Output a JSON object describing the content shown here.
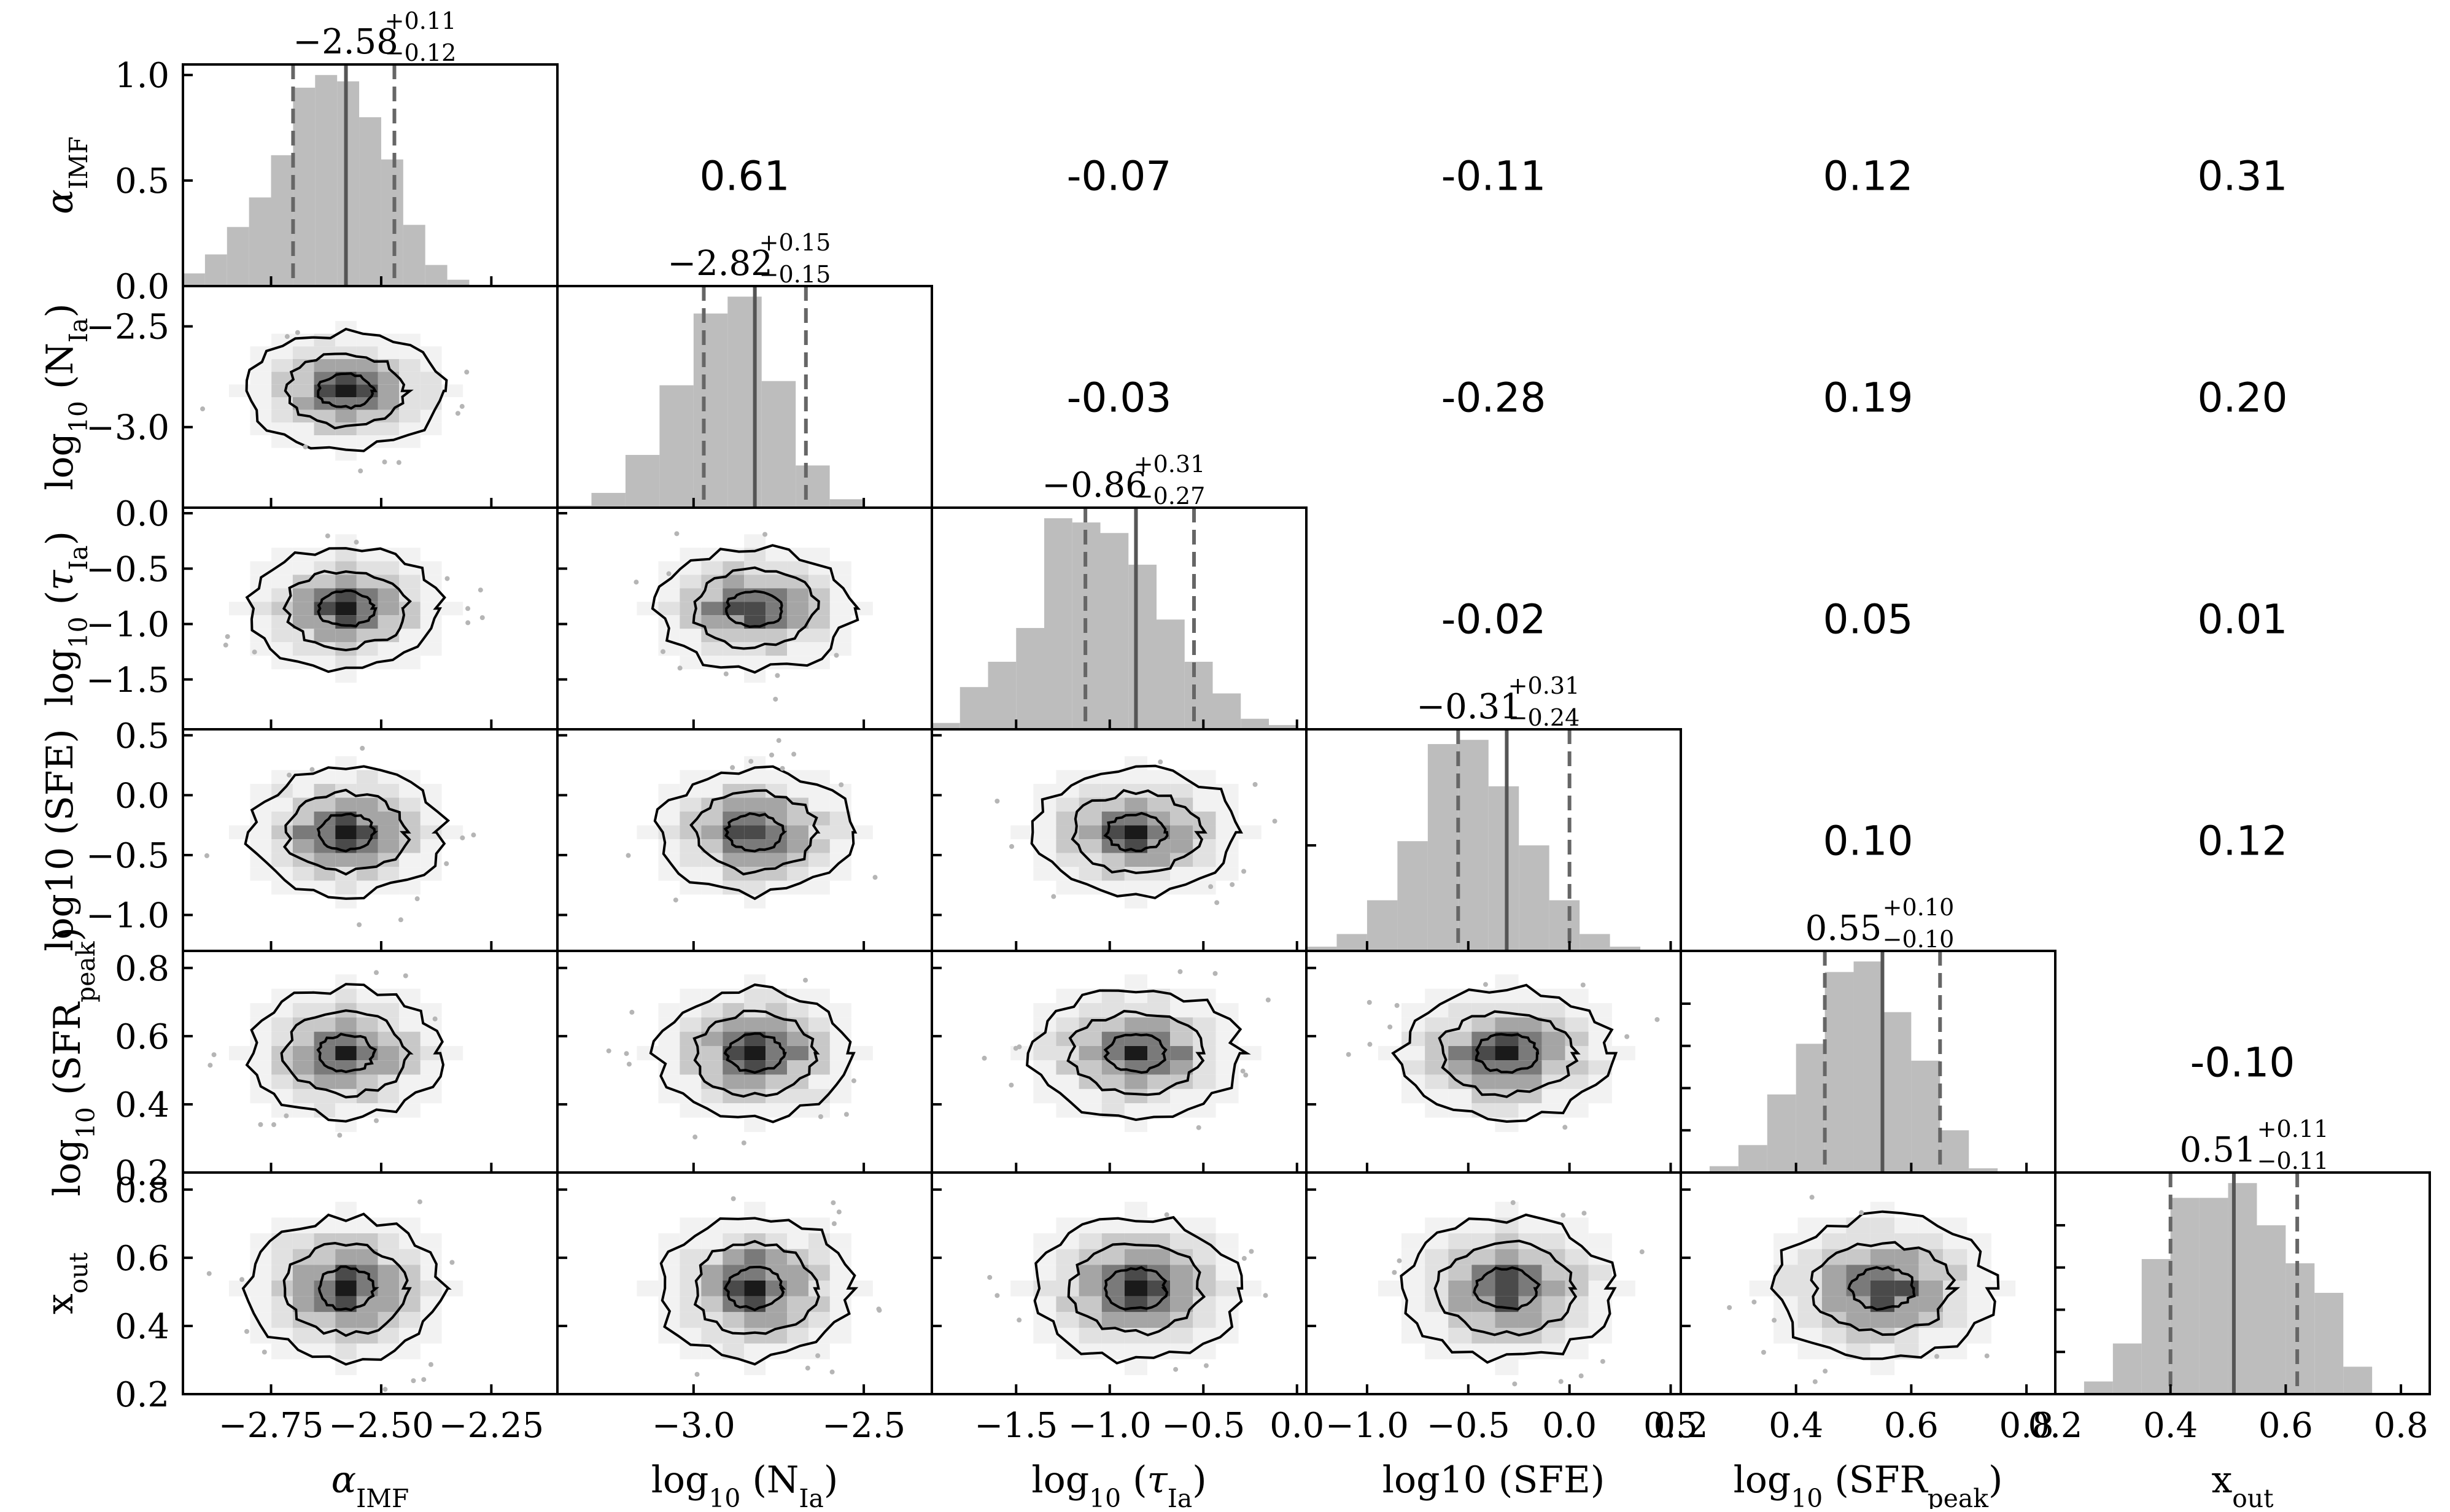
{
  "chart_data": {
    "type": "corner",
    "parameters": [
      {
        "key": "alpha",
        "axis_label": "α_IMF",
        "range": [
          -2.95,
          -2.1
        ],
        "ticks": [
          -2.75,
          -2.5,
          -2.25
        ],
        "tick_labels": [
          "−2.75",
          "−2.50",
          "−2.25"
        ],
        "median": -2.58,
        "plus": 0.11,
        "minus": 0.12,
        "title_main": "−2.58",
        "title_sup": "+0.11",
        "title_sub": "−0.12",
        "hist_edges": [
          -2.95,
          -2.9,
          -2.85,
          -2.8,
          -2.75,
          -2.7,
          -2.65,
          -2.6,
          -2.55,
          -2.5,
          -2.45,
          -2.4,
          -2.35,
          -2.3,
          -2.25,
          -2.2,
          -2.15
        ],
        "hist_values": [
          0.06,
          0.15,
          0.28,
          0.42,
          0.62,
          0.94,
          1.0,
          0.97,
          0.8,
          0.6,
          0.29,
          0.1,
          0.03,
          0.0,
          0.0,
          0.0
        ]
      },
      {
        "key": "nia",
        "axis_label": "log10 (N_Ia)",
        "range": [
          -3.4,
          -2.3
        ],
        "ticks": [
          -3.0,
          -2.5
        ],
        "tick_labels": [
          "−3.0",
          "−2.5"
        ],
        "median": -2.82,
        "plus": 0.15,
        "minus": 0.15,
        "title_main": "−2.82",
        "title_sup": "+0.15",
        "title_sub": "−0.15",
        "hist_edges": [
          -3.4,
          -3.3,
          -3.2,
          -3.1,
          -3.0,
          -2.9,
          -2.8,
          -2.7,
          -2.6,
          -2.5,
          -2.4
        ],
        "hist_values": [
          0.01,
          0.07,
          0.25,
          0.58,
          0.92,
          1.0,
          0.6,
          0.2,
          0.04,
          0.0
        ]
      },
      {
        "key": "tau",
        "axis_label": "log10 (τ_Ia)",
        "range": [
          -1.95,
          0.05
        ],
        "ticks": [
          -1.5,
          -1.0,
          -0.5,
          0.0
        ],
        "tick_labels": [
          "−1.5",
          "−1.0",
          "−0.5",
          "0.0"
        ],
        "median": -0.86,
        "plus": 0.31,
        "minus": 0.27,
        "title_main": "−0.86",
        "title_sup": "+0.31",
        "title_sub": "−0.27",
        "hist_edges": [
          -1.95,
          -1.8,
          -1.65,
          -1.5,
          -1.35,
          -1.2,
          -1.05,
          -0.9,
          -0.75,
          -0.6,
          -0.45,
          -0.3,
          -0.15,
          0.0
        ],
        "hist_values": [
          0.03,
          0.2,
          0.32,
          0.48,
          1.0,
          0.98,
          0.93,
          0.78,
          0.52,
          0.32,
          0.17,
          0.05,
          0.02
        ]
      },
      {
        "key": "sfe",
        "axis_label": "log10 (SFE)",
        "range": [
          -1.3,
          0.55
        ],
        "ticks": [
          -1.0,
          -0.5,
          0.0,
          0.5
        ],
        "tick_labels": [
          "−1.0",
          "−0.5",
          "0.0",
          "0.5"
        ],
        "median": -0.31,
        "plus": 0.31,
        "minus": 0.24,
        "title_main": "−0.31",
        "title_sup": "+0.31",
        "title_sub": "−0.24",
        "hist_edges": [
          -1.3,
          -1.15,
          -1.0,
          -0.85,
          -0.7,
          -0.55,
          -0.4,
          -0.25,
          -0.1,
          0.05,
          0.2,
          0.35,
          0.5
        ],
        "hist_values": [
          0.02,
          0.08,
          0.24,
          0.52,
          0.98,
          1.0,
          0.78,
          0.5,
          0.24,
          0.08,
          0.02,
          0.0
        ]
      },
      {
        "key": "sfr",
        "axis_label": "log10 (SFR_peak)",
        "range": [
          0.2,
          0.85
        ],
        "ticks": [
          0.2,
          0.4,
          0.6,
          0.8
        ],
        "tick_labels": [
          "0.2",
          "0.4",
          "0.6",
          "0.8"
        ],
        "median": 0.55,
        "plus": 0.1,
        "minus": 0.1,
        "title_main": "0.55",
        "title_sup": "+0.10",
        "title_sub": "−0.10",
        "hist_edges": [
          0.2,
          0.25,
          0.3,
          0.35,
          0.4,
          0.45,
          0.5,
          0.55,
          0.6,
          0.65,
          0.7,
          0.75,
          0.8,
          0.85
        ],
        "hist_values": [
          0.0,
          0.03,
          0.13,
          0.37,
          0.61,
          0.95,
          1.0,
          0.76,
          0.53,
          0.2,
          0.02,
          0.0,
          0.0
        ]
      },
      {
        "key": "xout",
        "axis_label": "x_out",
        "range": [
          0.2,
          0.85
        ],
        "ticks": [
          0.2,
          0.4,
          0.6,
          0.8
        ],
        "tick_labels": [
          "0.2",
          "0.4",
          "0.6",
          "0.8"
        ],
        "median": 0.51,
        "plus": 0.11,
        "minus": 0.11,
        "title_main": "0.51",
        "title_sup": "+0.11",
        "title_sub": "−0.11",
        "hist_edges": [
          0.2,
          0.25,
          0.3,
          0.35,
          0.4,
          0.45,
          0.5,
          0.55,
          0.6,
          0.65,
          0.7,
          0.75,
          0.8,
          0.85
        ],
        "hist_values": [
          0.0,
          0.06,
          0.24,
          0.64,
          0.93,
          0.93,
          1.0,
          0.8,
          0.62,
          0.48,
          0.13,
          0.0,
          0.0
        ]
      }
    ],
    "y_axis": [
      {
        "row": 0,
        "label": "α_IMF",
        "range": [
          0,
          1.05
        ],
        "ticks": [
          0.0,
          0.5,
          1.0
        ],
        "tick_labels": [
          "0.0",
          "0.5",
          "1.0"
        ]
      },
      {
        "row": 1,
        "label": "log10 (N_Ia)",
        "range": [
          -3.4,
          -2.3
        ],
        "ticks": [
          -3.0,
          -2.5
        ],
        "tick_labels": [
          "−3.0",
          "−2.5"
        ]
      },
      {
        "row": 2,
        "label": "log10 (τ_Ia)",
        "range": [
          -1.95,
          0.05
        ],
        "ticks": [
          -1.5,
          -1.0,
          -0.5,
          0.0
        ],
        "tick_labels": [
          "−1.5",
          "−1.0",
          "−0.5",
          "0.0"
        ]
      },
      {
        "row": 3,
        "label": "log10 (SFE)",
        "range": [
          -1.3,
          0.55
        ],
        "ticks": [
          -1.0,
          -0.5,
          0.0,
          0.5
        ],
        "tick_labels": [
          "−1.0",
          "−0.5",
          "0.0",
          "0.5"
        ]
      },
      {
        "row": 4,
        "label": "log10 (SFR_peak)",
        "range": [
          0.2,
          0.85
        ],
        "ticks": [
          0.2,
          0.4,
          0.6,
          0.8
        ],
        "tick_labels": [
          "0.2",
          "0.4",
          "0.6",
          "0.8"
        ]
      },
      {
        "row": 5,
        "label": "x_out",
        "range": [
          0.2,
          0.85
        ],
        "ticks": [
          0.2,
          0.4,
          0.6,
          0.8
        ],
        "tick_labels": [
          "0.2",
          "0.4",
          "0.6",
          "0.8"
        ]
      }
    ],
    "correlations": [
      {
        "row": 0,
        "col": 1,
        "value": "0.61"
      },
      {
        "row": 0,
        "col": 2,
        "value": "-0.07"
      },
      {
        "row": 0,
        "col": 3,
        "value": "-0.11"
      },
      {
        "row": 0,
        "col": 4,
        "value": "0.12"
      },
      {
        "row": 0,
        "col": 5,
        "value": "0.31"
      },
      {
        "row": 1,
        "col": 2,
        "value": "-0.03"
      },
      {
        "row": 1,
        "col": 3,
        "value": "-0.28"
      },
      {
        "row": 1,
        "col": 4,
        "value": "0.19"
      },
      {
        "row": 1,
        "col": 5,
        "value": "0.20"
      },
      {
        "row": 2,
        "col": 3,
        "value": "-0.02"
      },
      {
        "row": 2,
        "col": 4,
        "value": "0.05"
      },
      {
        "row": 2,
        "col": 5,
        "value": "0.01"
      },
      {
        "row": 3,
        "col": 4,
        "value": "0.10"
      },
      {
        "row": 3,
        "col": 5,
        "value": "0.12"
      },
      {
        "row": 4,
        "col": 5,
        "value": "-0.10"
      }
    ],
    "histogram_color": "#bdbdbd",
    "median_line_color": "#555555",
    "quantile_line_color": "#666666",
    "density_color": "#000000"
  }
}
